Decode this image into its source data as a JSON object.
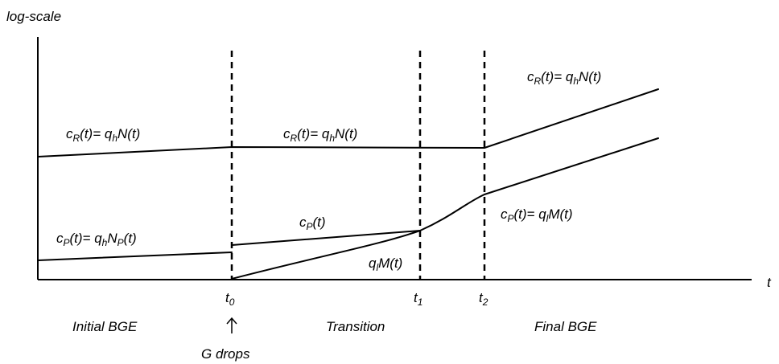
{
  "axes": {
    "y_label": "log-scale",
    "x_label": "t"
  },
  "time_markers": [
    {
      "base": "t",
      "sub": "0"
    },
    {
      "base": "t",
      "sub": "1"
    },
    {
      "base": "t",
      "sub": "2"
    }
  ],
  "regions": {
    "initial": "Initial BGE",
    "transition": "Transition",
    "final": "Final BGE"
  },
  "event": {
    "arrow_glyph": "↑",
    "label": "G drops"
  },
  "curve_labels": {
    "cr_initial": {
      "p1": "c",
      "s1": "R",
      "p2": "(t)= q",
      "s2": "h",
      "p3": "N(t)"
    },
    "cr_transition": {
      "p1": "c",
      "s1": "R",
      "p2": "(t)= q",
      "s2": "h",
      "p3": "N(t)"
    },
    "cr_final": {
      "p1": "c",
      "s1": "R",
      "p2": "(t)= q",
      "s2": "h",
      "p3": "N(t)"
    },
    "cp_initial": {
      "p1": "c",
      "s1": "P",
      "p2": "(t)= q",
      "s2": "h",
      "p3": "N",
      "s3": "P",
      "p4": "(t)"
    },
    "cp_transition": {
      "p1": "c",
      "s1": "P",
      "p2": "(t)"
    },
    "ql_transition": {
      "p1": "q",
      "s1": "l",
      "p2": "M(t)"
    },
    "cp_final": {
      "p1": "c",
      "s1": "P",
      "p2": "(t)= q",
      "s2": "l",
      "p3": "M(t)"
    }
  }
}
